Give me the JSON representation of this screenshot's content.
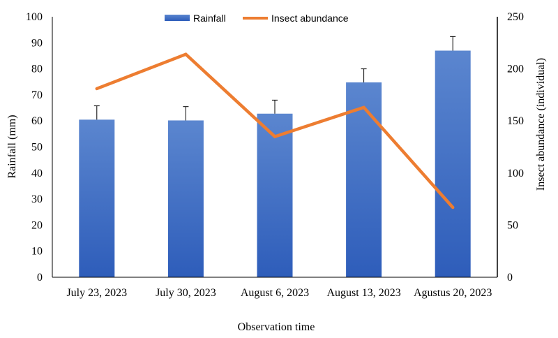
{
  "chart_data": {
    "type": "bar",
    "categories": [
      "July 23, 2023",
      "July 30, 2023",
      "August 6, 2023",
      "August 13, 2023",
      "Agustus 20, 2023"
    ],
    "series": [
      {
        "name": "Rainfall",
        "type": "bar",
        "axis": "left",
        "values": [
          60.5,
          60.2,
          62.8,
          74.8,
          87.0
        ],
        "error_plus": [
          5.3,
          5.3,
          5.2,
          5.2,
          5.4
        ],
        "color": "#4472C4"
      },
      {
        "name": "Insect abundance",
        "type": "line",
        "axis": "right",
        "values": [
          181,
          214,
          135,
          163,
          67
        ],
        "color": "#ED7D31"
      }
    ],
    "xlabel": "Observation time",
    "ylabel": "Rainfall (mm)",
    "y2label": "Insect abundance (individual)",
    "ylim": [
      0,
      100
    ],
    "yticks": [
      0,
      10,
      20,
      30,
      40,
      50,
      60,
      70,
      80,
      90,
      100
    ],
    "y2lim": [
      0,
      250
    ],
    "y2ticks": [
      0,
      50,
      100,
      150,
      200,
      250
    ],
    "legend_position": "top",
    "grid": false
  }
}
